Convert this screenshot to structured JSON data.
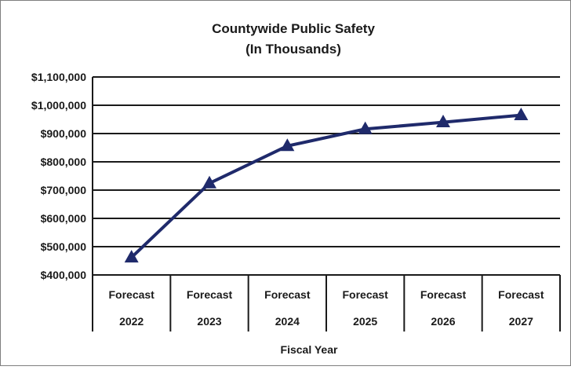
{
  "chart_data": {
    "type": "line",
    "title": "Countywide Public Safety",
    "subtitle": "(In Thousands)",
    "xlabel": "Fiscal Year",
    "ylabel": "",
    "categories": [
      {
        "top": "Forecast",
        "bottom": "2022"
      },
      {
        "top": "Forecast",
        "bottom": "2023"
      },
      {
        "top": "Forecast",
        "bottom": "2024"
      },
      {
        "top": "Forecast",
        "bottom": "2025"
      },
      {
        "top": "Forecast",
        "bottom": "2026"
      },
      {
        "top": "Forecast",
        "bottom": "2027"
      }
    ],
    "series": [
      {
        "values": [
          462000,
          724000,
          856000,
          916000,
          940000,
          965000
        ]
      }
    ],
    "ylim": [
      400000,
      1100000
    ],
    "yticks": [
      {
        "value": 400000,
        "label": "$400,000"
      },
      {
        "value": 500000,
        "label": "$500,000"
      },
      {
        "value": 600000,
        "label": "$600,000"
      },
      {
        "value": 700000,
        "label": "$700,000"
      },
      {
        "value": 800000,
        "label": "$800,000"
      },
      {
        "value": 900000,
        "label": "$900,000"
      },
      {
        "value": 1000000,
        "label": "$1,000,000"
      },
      {
        "value": 1100000,
        "label": "$1,100,000"
      }
    ],
    "grid": true,
    "marker": "triangle",
    "line_color": "#1f2a6b"
  }
}
